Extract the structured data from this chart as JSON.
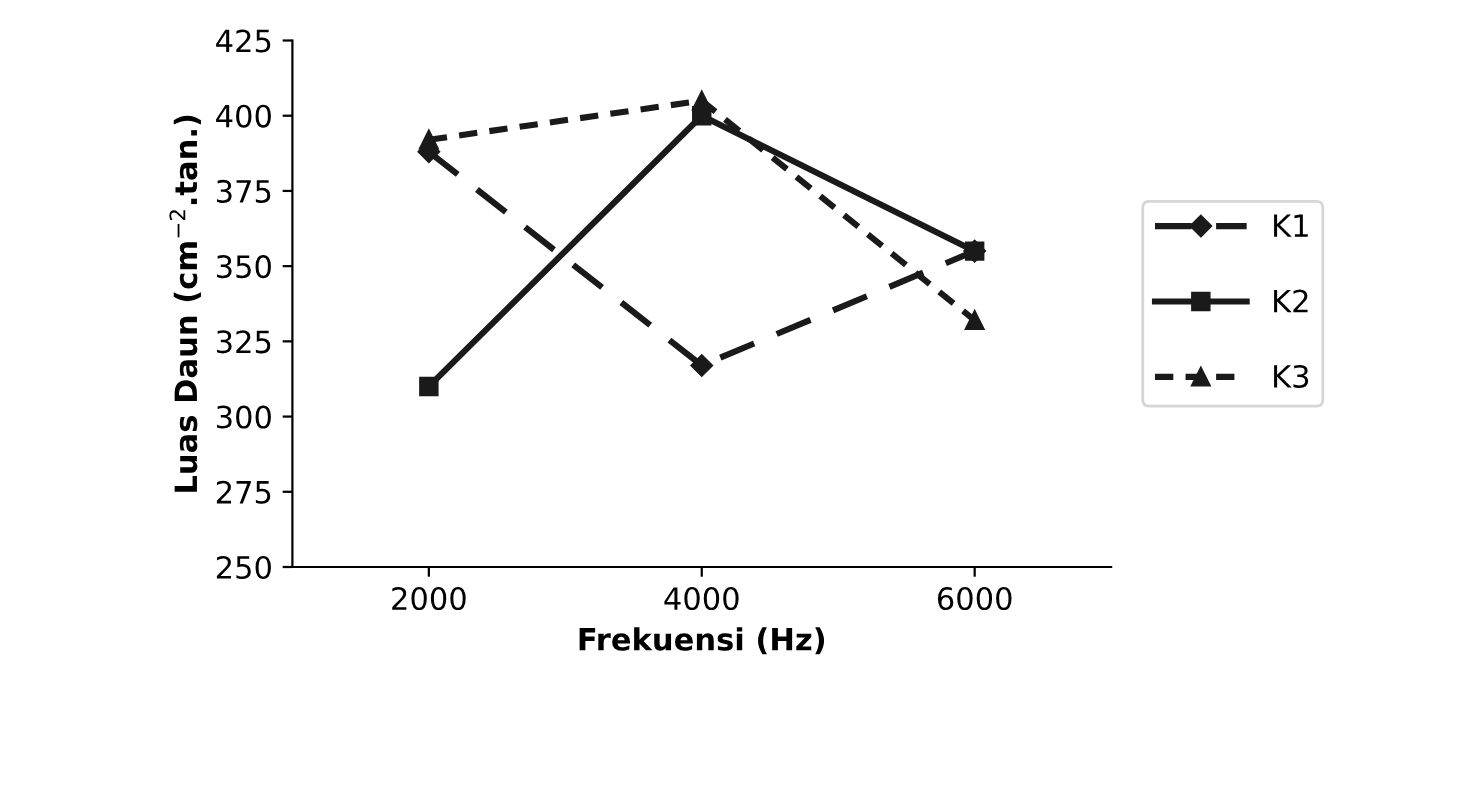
{
  "chart_data": {
    "type": "line",
    "xlabel": "Frekuensi (Hz)",
    "ylabel": "Luas Daun (cm$^{−2}$.tan.)",
    "categories": [
      "2000",
      "4000",
      "6000"
    ],
    "series": [
      {
        "name": "K1",
        "color": "#1a1a1a",
        "values": [
          388,
          317,
          355
        ],
        "marker": "diamond",
        "line_style": "dashed"
      },
      {
        "name": "K2",
        "color": "#1a1a1a",
        "values": [
          310,
          400,
          355
        ],
        "marker": "square",
        "line_style": "solid"
      },
      {
        "name": "K3",
        "color": "#1a1a1a",
        "values": [
          392,
          405,
          332
        ],
        "marker": "triangle",
        "line_style": "dotted"
      }
    ],
    "ylim": [
      250,
      425
    ],
    "yticks": [
      250,
      275,
      300,
      325,
      350,
      375,
      400,
      425
    ],
    "grid": false,
    "legend": "right"
  }
}
